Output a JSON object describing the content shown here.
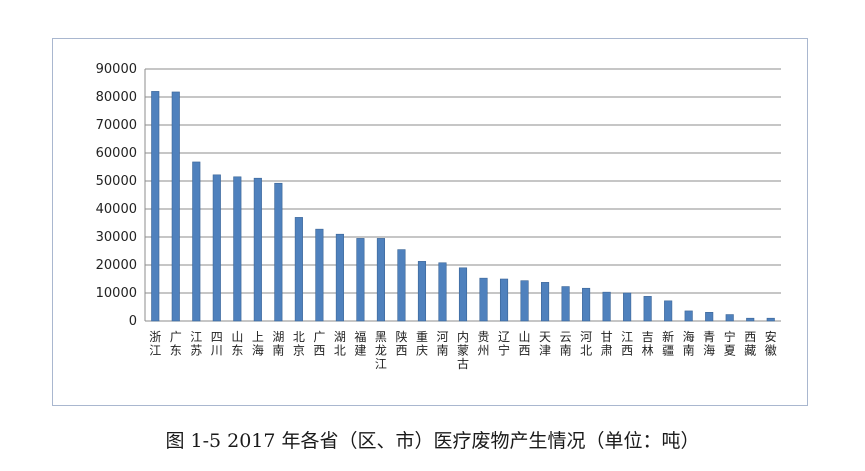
{
  "caption": "图 1-5 2017 年各省（区、市）医疗废物产生情况（单位：吨）",
  "chart_data": {
    "type": "bar",
    "title": "",
    "xlabel": "",
    "ylabel": "",
    "ylim": [
      0,
      90000
    ],
    "yticks": [
      0,
      10000,
      20000,
      30000,
      40000,
      50000,
      60000,
      70000,
      80000,
      90000
    ],
    "grid": true,
    "legend": "none",
    "bar_color": "#4f81bd",
    "categories": [
      "浙江",
      "广东",
      "江苏",
      "四川",
      "山东",
      "上海",
      "湖南",
      "北京",
      "广西",
      "湖北",
      "福建",
      "黑龙江",
      "陕西",
      "重庆",
      "河南",
      "内蒙古",
      "贵州",
      "辽宁",
      "山西",
      "天津",
      "云南",
      "河北",
      "甘肃",
      "江西",
      "吉林",
      "新疆",
      "海南",
      "青海",
      "宁夏",
      "西藏",
      "安徽"
    ],
    "values": [
      82000,
      81800,
      56800,
      52200,
      51500,
      51000,
      49200,
      37000,
      32800,
      31000,
      29500,
      29500,
      25500,
      21300,
      20800,
      19000,
      15300,
      15000,
      14400,
      13800,
      12300,
      11700,
      10300,
      10000,
      8800,
      7200,
      3600,
      3100,
      2300,
      1000,
      1000
    ]
  }
}
